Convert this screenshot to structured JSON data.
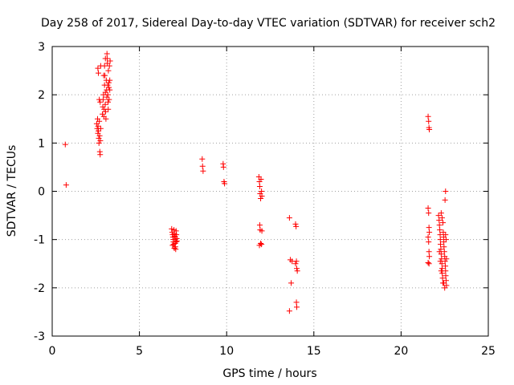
{
  "chart_data": {
    "type": "scatter",
    "title": "Day 258 of 2017, Sidereal Day-to-day VTEC variation (SDTVAR) for receiver sch2",
    "xlabel": "GPS time / hours",
    "ylabel": "SDTVAR / TECUs",
    "xlim": [
      0,
      25
    ],
    "ylim": [
      -3,
      3
    ],
    "xticks": [
      "0",
      "5",
      "10",
      "15",
      "20",
      "25"
    ],
    "yticks": [
      "-3",
      "-2",
      "-1",
      "0",
      "1",
      "2",
      "3"
    ],
    "grid": true,
    "marker": "plus",
    "color": "#ff0000",
    "series": [
      {
        "name": "sch2",
        "points": [
          [
            0.75,
            0.97
          ],
          [
            0.8,
            0.13
          ],
          [
            2.55,
            1.4
          ],
          [
            2.58,
            1.3
          ],
          [
            2.6,
            1.5
          ],
          [
            2.62,
            1.2
          ],
          [
            2.63,
            1.35
          ],
          [
            2.65,
            1.25
          ],
          [
            2.67,
            1.1
          ],
          [
            2.68,
            1.0
          ],
          [
            2.7,
            1.45
          ],
          [
            2.72,
            1.15
          ],
          [
            2.73,
            0.82
          ],
          [
            2.75,
            0.76
          ],
          [
            2.76,
            1.05
          ],
          [
            2.78,
            1.3
          ],
          [
            2.62,
            2.55
          ],
          [
            2.65,
            2.45
          ],
          [
            2.7,
            1.9
          ],
          [
            2.75,
            1.85
          ],
          [
            2.78,
            2.6
          ],
          [
            2.88,
            1.6
          ],
          [
            2.9,
            1.75
          ],
          [
            2.92,
            1.9
          ],
          [
            2.94,
            2.0
          ],
          [
            2.96,
            1.55
          ],
          [
            2.98,
            1.7
          ],
          [
            3.0,
            2.2
          ],
          [
            3.02,
            2.4
          ],
          [
            3.04,
            1.8
          ],
          [
            3.05,
            2.05
          ],
          [
            3.06,
            1.65
          ],
          [
            3.08,
            1.5
          ],
          [
            3.1,
            2.3
          ],
          [
            3.12,
            2.1
          ],
          [
            3.13,
            1.95
          ],
          [
            3.14,
            2.85
          ],
          [
            3.15,
            2.75
          ],
          [
            3.16,
            2.65
          ],
          [
            3.18,
            2.2
          ],
          [
            3.19,
            2.0
          ],
          [
            3.2,
            1.85
          ],
          [
            3.21,
            1.7
          ],
          [
            3.22,
            2.5
          ],
          [
            3.24,
            2.25
          ],
          [
            3.25,
            2.15
          ],
          [
            3.26,
            1.9
          ],
          [
            3.28,
            2.6
          ],
          [
            3.3,
            2.3
          ],
          [
            3.3,
            2.1
          ],
          [
            3.32,
            2.7
          ],
          [
            2.95,
            2.4
          ],
          [
            3.0,
            2.6
          ],
          [
            3.05,
            2.75
          ],
          [
            6.85,
            -0.78
          ],
          [
            6.88,
            -0.85
          ],
          [
            6.9,
            -0.9
          ],
          [
            6.92,
            -0.95
          ],
          [
            6.94,
            -1.0
          ],
          [
            6.95,
            -1.05
          ],
          [
            6.96,
            -1.1
          ],
          [
            6.98,
            -0.8
          ],
          [
            7.0,
            -0.88
          ],
          [
            7.02,
            -0.93
          ],
          [
            7.04,
            -1.0
          ],
          [
            7.05,
            -1.08
          ],
          [
            7.06,
            -1.15
          ],
          [
            7.08,
            -1.2
          ],
          [
            7.1,
            -0.82
          ],
          [
            7.12,
            -0.9
          ],
          [
            7.14,
            -0.98
          ],
          [
            7.15,
            -1.03
          ],
          [
            6.9,
            -1.12
          ],
          [
            7.0,
            -1.18
          ],
          [
            7.05,
            -0.95
          ],
          [
            7.1,
            -1.05
          ],
          [
            8.6,
            0.67
          ],
          [
            8.62,
            0.52
          ],
          [
            8.65,
            0.42
          ],
          [
            9.8,
            0.57
          ],
          [
            9.82,
            0.5
          ],
          [
            9.85,
            0.2
          ],
          [
            9.88,
            0.16
          ],
          [
            11.85,
            0.3
          ],
          [
            11.88,
            0.2
          ],
          [
            11.9,
            0.1
          ],
          [
            11.92,
            -0.05
          ],
          [
            11.95,
            -0.15
          ],
          [
            11.97,
            0.25
          ],
          [
            12.0,
            0.0
          ],
          [
            12.02,
            -0.1
          ],
          [
            11.9,
            -0.7
          ],
          [
            11.92,
            -0.8
          ],
          [
            11.95,
            -1.08
          ],
          [
            12.0,
            -1.1
          ],
          [
            12.02,
            -0.82
          ],
          [
            11.88,
            -1.12
          ],
          [
            13.6,
            -0.55
          ],
          [
            13.65,
            -1.42
          ],
          [
            13.7,
            -1.9
          ],
          [
            13.75,
            -1.45
          ],
          [
            13.6,
            -2.48
          ],
          [
            13.95,
            -0.68
          ],
          [
            13.98,
            -0.73
          ],
          [
            14.0,
            -1.45
          ],
          [
            14.02,
            -1.6
          ],
          [
            14.05,
            -1.65
          ],
          [
            14.0,
            -2.3
          ],
          [
            14.02,
            -2.4
          ],
          [
            13.95,
            -1.5
          ],
          [
            21.55,
            1.55
          ],
          [
            21.58,
            1.45
          ],
          [
            21.6,
            1.32
          ],
          [
            21.62,
            1.28
          ],
          [
            21.55,
            -0.35
          ],
          [
            21.58,
            -0.45
          ],
          [
            21.6,
            -0.75
          ],
          [
            21.62,
            -0.85
          ],
          [
            21.55,
            -0.95
          ],
          [
            21.58,
            -1.05
          ],
          [
            21.6,
            -1.25
          ],
          [
            21.62,
            -1.35
          ],
          [
            21.55,
            -1.48
          ],
          [
            21.6,
            -1.5
          ],
          [
            22.15,
            -0.5
          ],
          [
            22.18,
            -0.6
          ],
          [
            22.2,
            -0.7
          ],
          [
            22.22,
            -0.8
          ],
          [
            22.24,
            -0.9
          ],
          [
            22.25,
            -1.0
          ],
          [
            22.26,
            -1.1
          ],
          [
            22.28,
            -1.2
          ],
          [
            22.3,
            -1.3
          ],
          [
            22.32,
            -1.4
          ],
          [
            22.34,
            -1.5
          ],
          [
            22.35,
            -1.6
          ],
          [
            22.36,
            -1.7
          ],
          [
            22.38,
            -1.8
          ],
          [
            22.4,
            -1.9
          ],
          [
            22.42,
            -0.85
          ],
          [
            22.44,
            -0.95
          ],
          [
            22.45,
            -1.05
          ],
          [
            22.46,
            -1.15
          ],
          [
            22.48,
            -1.25
          ],
          [
            22.5,
            -1.35
          ],
          [
            22.52,
            -1.45
          ],
          [
            22.54,
            -1.55
          ],
          [
            22.55,
            -1.65
          ],
          [
            22.56,
            -1.75
          ],
          [
            22.58,
            -1.85
          ],
          [
            22.6,
            -1.95
          ],
          [
            22.3,
            -0.45
          ],
          [
            22.35,
            -0.55
          ],
          [
            22.4,
            -0.65
          ],
          [
            22.45,
            -1.9
          ],
          [
            22.5,
            -2.0
          ],
          [
            22.55,
            -0.9
          ],
          [
            22.58,
            -1.0
          ],
          [
            22.6,
            -1.4
          ],
          [
            22.52,
            -0.18
          ],
          [
            22.55,
            0.0
          ],
          [
            22.2,
            -1.25
          ],
          [
            22.25,
            -1.45
          ],
          [
            22.3,
            -1.65
          ]
        ]
      }
    ]
  }
}
